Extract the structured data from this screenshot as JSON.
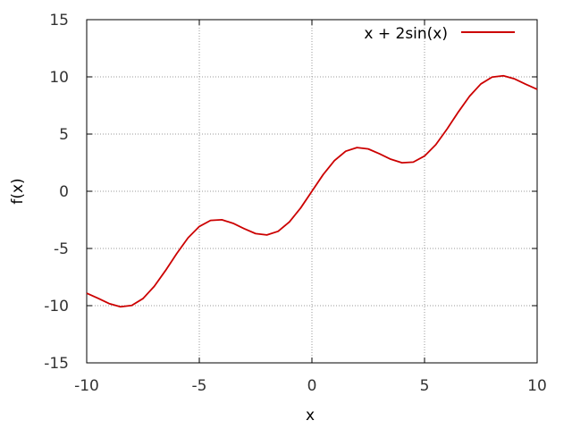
{
  "chart_data": {
    "type": "line",
    "title": "",
    "xlabel": "x",
    "ylabel": "f(x)",
    "xlim": [
      -10,
      10
    ],
    "ylim": [
      -15,
      15
    ],
    "xticks": [
      -10,
      -5,
      0,
      5,
      10
    ],
    "yticks": [
      -15,
      -10,
      -5,
      0,
      5,
      10,
      15
    ],
    "xtick_labels": [
      "-10",
      "-5",
      "0",
      "5",
      "10"
    ],
    "ytick_labels": [
      "-15",
      "-10",
      "-5",
      "0",
      "5",
      "10",
      "15"
    ],
    "grid": true,
    "legend_position": "top-right",
    "series": [
      {
        "name": "x + 2sin(x)",
        "color": "#cc0000",
        "x": [
          -10,
          -9.5,
          -9,
          -8.5,
          -8,
          -7.5,
          -7,
          -6.5,
          -6,
          -5.5,
          -5,
          -4.5,
          -4,
          -3.5,
          -3,
          -2.5,
          -2,
          -1.5,
          -1,
          -0.5,
          0,
          0.5,
          1,
          1.5,
          2,
          2.5,
          3,
          3.5,
          4,
          4.5,
          5,
          5.5,
          6,
          6.5,
          7,
          7.5,
          8,
          8.5,
          9,
          9.5,
          10
        ],
        "y": [
          -8.91,
          -9.35,
          -9.82,
          -10.1,
          -9.98,
          -9.38,
          -8.31,
          -6.93,
          -5.44,
          -4.07,
          -3.08,
          -2.55,
          -2.49,
          -2.8,
          -3.28,
          -3.7,
          -3.82,
          -3.5,
          -2.68,
          -1.46,
          0,
          1.46,
          2.68,
          3.5,
          3.82,
          3.7,
          3.28,
          2.8,
          2.49,
          2.55,
          3.08,
          4.07,
          5.44,
          6.93,
          8.31,
          9.38,
          9.98,
          10.1,
          9.82,
          9.35,
          8.91
        ]
      }
    ]
  }
}
